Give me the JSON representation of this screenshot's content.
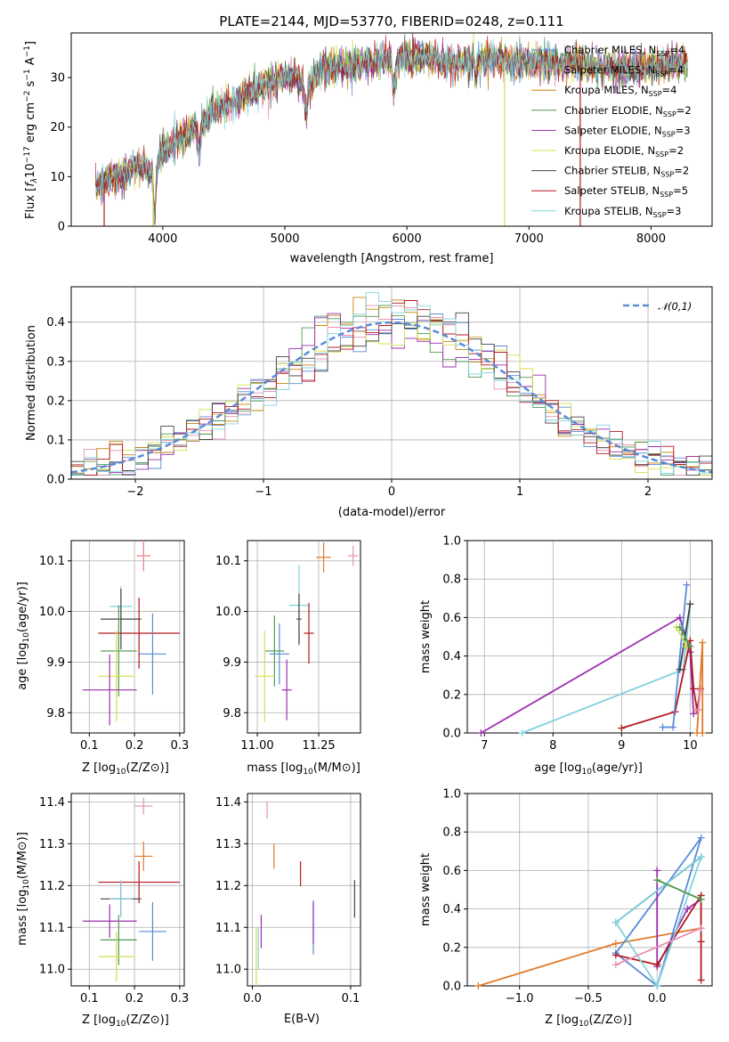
{
  "chart_data": [
    {
      "id": "spectrum",
      "type": "line",
      "title": "PLATE=2144, MJD=53770, FIBERID=0248, z=0.111",
      "xlabel": "wavelength [Angstrom, rest frame]",
      "ylabel": "Flux [fλ10⁻¹⁷ erg cm⁻² s⁻¹ A⁻¹]",
      "xlim": [
        3250,
        8500
      ],
      "ylim": [
        0,
        39
      ],
      "xticks": [
        4000,
        5000,
        6000,
        7000,
        8000
      ],
      "yticks": [
        0,
        10,
        20,
        30
      ],
      "grid": false,
      "legend_position": "right",
      "continuum": {
        "x": [
          3450,
          3600,
          3700,
          3800,
          3900,
          3950,
          4000,
          4100,
          4200,
          4300,
          4400,
          4500,
          4600,
          4700,
          4800,
          4900,
          5000,
          5100,
          5200,
          5300,
          5400,
          5500,
          5600,
          5700,
          5800,
          5900,
          6000,
          6100,
          6200,
          6300,
          6400,
          6500,
          6600,
          6700,
          6800,
          6900,
          7000,
          7200,
          7400,
          7600,
          7800,
          8000,
          8300
        ],
        "y": [
          8,
          10,
          11,
          12,
          11,
          12,
          15,
          17,
          19,
          20,
          23,
          24,
          25,
          27,
          28,
          29,
          30,
          30,
          28,
          32,
          32,
          32,
          33,
          33,
          34,
          33,
          34,
          34,
          34,
          33,
          33,
          33,
          34,
          34,
          33,
          33,
          33,
          33,
          33,
          32,
          32,
          32,
          33
        ]
      },
      "absorption_dips": [
        {
          "x": 3933,
          "depth": 10
        },
        {
          "x": 4300,
          "depth": 4
        },
        {
          "x": 5175,
          "depth": 6
        },
        {
          "x": 5893,
          "depth": 6
        },
        {
          "x": 6563,
          "depth": 3
        }
      ],
      "series": [
        {
          "name": "Chabrier MILES, N_SSP=4",
          "label_main": "Chabrier MILES, N",
          "label_sub": "SSP",
          "label_tail": "=4",
          "color": "#5b8bd6"
        },
        {
          "name": "Salpeter MILES, N_SSP=4",
          "label_main": "Salpeter MILES, N",
          "label_sub": "SSP",
          "label_tail": "=4",
          "color": "#e88fb4"
        },
        {
          "name": "Kroupa MILES, N_SSP=4",
          "label_main": "Kroupa MILES, N",
          "label_sub": "SSP",
          "label_tail": "=4",
          "color": "#c8860e"
        },
        {
          "name": "Chabrier ELODIE, N_SSP=2",
          "label_main": "Chabrier ELODIE, N",
          "label_sub": "SSP",
          "label_tail": "=2",
          "color": "#4d9a57"
        },
        {
          "name": "Salpeter ELODIE, N_SSP=3",
          "label_main": "Salpeter ELODIE, N",
          "label_sub": "SSP",
          "label_tail": "=3",
          "color": "#9b2fae"
        },
        {
          "name": "Kroupa ELODIE, N_SSP=2",
          "label_main": "Kroupa ELODIE, N",
          "label_sub": "SSP",
          "label_tail": "=2",
          "color": "#d4e04a"
        },
        {
          "name": "Chabrier STELIB, N_SSP=2",
          "label_main": "Chabrier STELIB, N",
          "label_sub": "SSP",
          "label_tail": "=2",
          "color": "#444444"
        },
        {
          "name": "Salpeter STELIB, N_SSP=5",
          "label_main": "Salpeter STELIB, N",
          "label_sub": "SSP",
          "label_tail": "=5",
          "color": "#b3191e"
        },
        {
          "name": "Kroupa STELIB, N_SSP=3",
          "label_main": "Kroupa STELIB, N",
          "label_sub": "SSP",
          "label_tail": "=3",
          "color": "#7fd3dd"
        }
      ]
    },
    {
      "id": "residuals",
      "type": "line",
      "xlabel": "(data-model)/error",
      "ylabel": "Normed distribution",
      "xlim": [
        -2.5,
        2.5
      ],
      "ylim": [
        0,
        0.49
      ],
      "xticks": [
        -2,
        -1,
        0,
        1,
        2
      ],
      "yticks": [
        0.0,
        0.1,
        0.2,
        0.3,
        0.4
      ],
      "grid": true,
      "legend": "𝒩(0,1)",
      "legend_position": "top-right",
      "reference_color": "#5b8bd6",
      "bin_width": 0.1
    },
    {
      "id": "age_vs_Z",
      "type": "scatter",
      "xlabel_main": "Z [log",
      "xlabel_sub": "10",
      "xlabel_tail": "(Z/Z⊙)]",
      "ylabel_main": "age  [log",
      "ylabel_sub": "10",
      "ylabel_tail": "(age/yr)]",
      "xlim": [
        0.06,
        0.31
      ],
      "ylim": [
        9.76,
        10.14
      ],
      "xticks": [
        0.1,
        0.2,
        0.3
      ],
      "yticks": [
        9.8,
        9.9,
        10.0,
        10.1
      ],
      "points": [
        {
          "x": 0.22,
          "y": 10.11,
          "xerr": 0.015,
          "yerr": 0.03,
          "color": "#e07b2a"
        },
        {
          "x": 0.22,
          "y": 10.11,
          "xerr": 0.01,
          "yerr": 0.03,
          "color": "#e88fb4"
        },
        {
          "x": 0.17,
          "y": 10.01,
          "xerr": 0.025,
          "yerr": 0.04,
          "color": "#7fd3dd"
        },
        {
          "x": 0.17,
          "y": 9.985,
          "xerr": 0.045,
          "yerr": 0.06,
          "color": "#444444"
        },
        {
          "x": 0.21,
          "y": 9.957,
          "xerr": 0.09,
          "yerr": 0.07,
          "color": "#b3191e"
        },
        {
          "x": 0.24,
          "y": 9.916,
          "xerr": 0.03,
          "yerr": 0.08,
          "color": "#5b8bd6"
        },
        {
          "x": 0.165,
          "y": 9.922,
          "xerr": 0.04,
          "yerr": 0.09,
          "color": "#4d9a57"
        },
        {
          "x": 0.16,
          "y": 9.872,
          "xerr": 0.04,
          "yerr": 0.09,
          "color": "#d4e04a"
        },
        {
          "x": 0.145,
          "y": 9.845,
          "xerr": 0.06,
          "yerr": 0.07,
          "color": "#9b2fae"
        }
      ]
    },
    {
      "id": "age_vs_mass",
      "type": "scatter",
      "xlabel_main": "mass [log",
      "xlabel_sub": "10",
      "xlabel_tail": "(M/M⊙)]",
      "xlim": [
        10.96,
        11.42
      ],
      "ylim": [
        9.76,
        10.14
      ],
      "xticks": [
        11.0,
        11.25
      ],
      "yticks": [
        9.8,
        9.9,
        10.0,
        10.1
      ],
      "points": [
        {
          "x": 11.27,
          "y": 10.107,
          "xerr": 0.03,
          "yerr": 0.03,
          "color": "#e07b2a"
        },
        {
          "x": 11.39,
          "y": 10.11,
          "xerr": 0.02,
          "yerr": 0.02,
          "color": "#e88fb4"
        },
        {
          "x": 11.17,
          "y": 10.012,
          "xerr": 0.04,
          "yerr": 0.08,
          "color": "#7fd3dd"
        },
        {
          "x": 11.17,
          "y": 9.985,
          "xerr": 0.01,
          "yerr": 0.05,
          "color": "#444444"
        },
        {
          "x": 11.21,
          "y": 9.957,
          "xerr": 0.02,
          "yerr": 0.06,
          "color": "#b3191e"
        },
        {
          "x": 11.09,
          "y": 9.916,
          "xerr": 0.04,
          "yerr": 0.06,
          "color": "#5b8bd6"
        },
        {
          "x": 11.07,
          "y": 9.922,
          "xerr": 0.04,
          "yerr": 0.07,
          "color": "#4d9a57"
        },
        {
          "x": 11.03,
          "y": 9.872,
          "xerr": 0.04,
          "yerr": 0.09,
          "color": "#d4e04a"
        },
        {
          "x": 11.12,
          "y": 9.845,
          "xerr": 0.02,
          "yerr": 0.06,
          "color": "#9b2fae"
        }
      ]
    },
    {
      "id": "massweight_vs_age",
      "type": "line",
      "xlabel_main": "age  [log",
      "xlabel_sub": "10",
      "xlabel_tail": "(age/yr)]",
      "ylabel": "mass weight",
      "xlim": [
        6.75,
        10.32
      ],
      "ylim": [
        0,
        1.0
      ],
      "xticks": [
        7,
        8,
        9,
        10
      ],
      "yticks": [
        0.0,
        0.2,
        0.4,
        0.6,
        0.8,
        1.0
      ],
      "grid": true,
      "series": [
        {
          "color": "#9b2fae",
          "x": [
            6.95,
            9.85,
            10.0,
            10.05
          ],
          "y": [
            0.0,
            0.6,
            0.42,
            0.1
          ]
        },
        {
          "color": "#7fd3dd",
          "x": [
            7.55,
            9.9,
            10.0
          ],
          "y": [
            0.0,
            0.33,
            0.67
          ]
        },
        {
          "color": "#b3191e",
          "x": [
            9.0,
            9.78,
            10.0,
            10.05,
            10.1,
            10.15
          ],
          "y": [
            0.025,
            0.11,
            0.48,
            0.23,
            0.12,
            0.23
          ]
        },
        {
          "color": "#5b8bd6",
          "x": [
            9.6,
            9.75,
            9.95
          ],
          "y": [
            0.03,
            0.03,
            0.77
          ]
        },
        {
          "color": "#444444",
          "x": [
            9.85,
            10.0
          ],
          "y": [
            0.33,
            0.67
          ]
        },
        {
          "color": "#d4e04a",
          "x": [
            9.8,
            9.95
          ],
          "y": [
            0.55,
            0.45
          ]
        },
        {
          "color": "#4d9a57",
          "x": [
            9.85,
            10.0
          ],
          "y": [
            0.55,
            0.45
          ]
        },
        {
          "color": "#e07b2a",
          "x": [
            10.1,
            10.18,
            10.18
          ],
          "y": [
            0.0,
            0.47,
            0.0
          ]
        },
        {
          "color": "#e88fb4",
          "x": [
            10.08,
            10.12,
            10.15
          ],
          "y": [
            0.12,
            0.12,
            0.22
          ]
        }
      ]
    },
    {
      "id": "mass_vs_Z",
      "type": "scatter",
      "xlabel_main": "Z [log",
      "xlabel_sub": "10",
      "xlabel_tail": "(Z/Z⊙)]",
      "ylabel_main": "mass [log",
      "ylabel_sub": "10",
      "ylabel_tail": "(M/M⊙)]",
      "xlim": [
        0.06,
        0.31
      ],
      "ylim": [
        10.96,
        11.42
      ],
      "xticks": [
        0.1,
        0.2,
        0.3
      ],
      "yticks": [
        11.0,
        11.1,
        11.2,
        11.3,
        11.4
      ],
      "points": [
        {
          "x": 0.22,
          "y": 11.39,
          "xerr": 0.02,
          "yerr": 0.02,
          "color": "#e88fb4"
        },
        {
          "x": 0.22,
          "y": 11.27,
          "xerr": 0.02,
          "yerr": 0.035,
          "color": "#e07b2a"
        },
        {
          "x": 0.21,
          "y": 11.208,
          "xerr": 0.09,
          "yerr": 0.05,
          "color": "#b3191e"
        },
        {
          "x": 0.17,
          "y": 11.168,
          "xerr": 0.045,
          "yerr": 0.04,
          "color": "#444444"
        },
        {
          "x": 0.17,
          "y": 11.168,
          "xerr": 0.025,
          "yerr": 0.045,
          "color": "#7fd3dd"
        },
        {
          "x": 0.145,
          "y": 11.115,
          "xerr": 0.06,
          "yerr": 0.04,
          "color": "#9b2fae"
        },
        {
          "x": 0.24,
          "y": 11.09,
          "xerr": 0.03,
          "yerr": 0.07,
          "color": "#5b8bd6"
        },
        {
          "x": 0.165,
          "y": 11.07,
          "xerr": 0.04,
          "yerr": 0.06,
          "color": "#4d9a57"
        },
        {
          "x": 0.16,
          "y": 11.03,
          "xerr": 0.04,
          "yerr": 0.06,
          "color": "#d4e04a"
        }
      ]
    },
    {
      "id": "mass_vs_EBV",
      "type": "scatter",
      "xlabel": "E(B-V)",
      "xlim": [
        -0.005,
        0.11
      ],
      "ylim": [
        10.96,
        11.42
      ],
      "xticks": [
        0.0,
        0.1
      ],
      "yticks": [
        11.0,
        11.1,
        11.2,
        11.3,
        11.4
      ],
      "points": [
        {
          "x": 0.015,
          "y": 11.38,
          "yerr": 0.02,
          "color": "#e88fb4"
        },
        {
          "x": 0.022,
          "y": 11.27,
          "yerr": 0.03,
          "color": "#e07b2a"
        },
        {
          "x": 0.049,
          "y": 11.228,
          "yerr": 0.03,
          "color": "#b3191e"
        },
        {
          "x": 0.104,
          "y": 11.168,
          "yerr": 0.045,
          "color": "#444444"
        },
        {
          "x": 0.062,
          "y": 11.1,
          "yerr": 0.065,
          "color": "#5b8bd6"
        },
        {
          "x": 0.062,
          "y": 11.11,
          "yerr": 0.05,
          "color": "#9b2fae"
        },
        {
          "x": 0.009,
          "y": 11.09,
          "yerr": 0.04,
          "color": "#9b2fae"
        },
        {
          "x": 0.006,
          "y": 11.05,
          "yerr": 0.05,
          "color": "#7fd3dd"
        },
        {
          "x": 0.004,
          "y": 11.03,
          "yerr": 0.07,
          "color": "#d4e04a"
        }
      ]
    },
    {
      "id": "massweight_vs_Z",
      "type": "line",
      "xlabel_main": "Z [log",
      "xlabel_sub": "10",
      "xlabel_tail": "(Z/Z⊙)]",
      "ylabel": "mass weight",
      "xlim": [
        -1.38,
        0.4
      ],
      "ylim": [
        0,
        1.0
      ],
      "xticks": [
        -1.0,
        -0.5,
        0.0
      ],
      "yticks": [
        0.0,
        0.2,
        0.4,
        0.6,
        0.8,
        1.0
      ],
      "grid": true,
      "series": [
        {
          "color": "#e07b2a",
          "x": [
            -1.3,
            -0.3,
            0.32,
            0.32
          ],
          "y": [
            0.0,
            0.22,
            0.3,
            0.47
          ]
        },
        {
          "color": "#5b8bd6",
          "x": [
            -0.3,
            0.32,
            0.0,
            -0.3
          ],
          "y": [
            0.17,
            0.77,
            0.0,
            0.17
          ]
        },
        {
          "color": "#444444",
          "x": [
            -0.3,
            0.32
          ],
          "y": [
            0.33,
            0.67
          ]
        },
        {
          "color": "#9b2fae",
          "x": [
            0.0,
            0.0,
            0.22,
            0.32
          ],
          "y": [
            0.6,
            0.1,
            0.4,
            0.45
          ]
        },
        {
          "color": "#b3191e",
          "x": [
            -0.3,
            0.0,
            0.32,
            0.32,
            0.32
          ],
          "y": [
            0.16,
            0.11,
            0.47,
            0.23,
            0.03
          ]
        },
        {
          "color": "#7fd3dd",
          "x": [
            -0.3,
            0.0,
            0.32,
            -0.3
          ],
          "y": [
            0.33,
            0.0,
            0.67,
            0.33
          ]
        },
        {
          "color": "#d4e04a",
          "x": [
            0.0,
            0.32
          ],
          "y": [
            0.55,
            0.45
          ]
        },
        {
          "color": "#4d9a57",
          "x": [
            0.0,
            0.32
          ],
          "y": [
            0.55,
            0.45
          ]
        },
        {
          "color": "#e88fb4",
          "x": [
            -0.3,
            0.32
          ],
          "y": [
            0.11,
            0.3
          ]
        }
      ]
    }
  ]
}
